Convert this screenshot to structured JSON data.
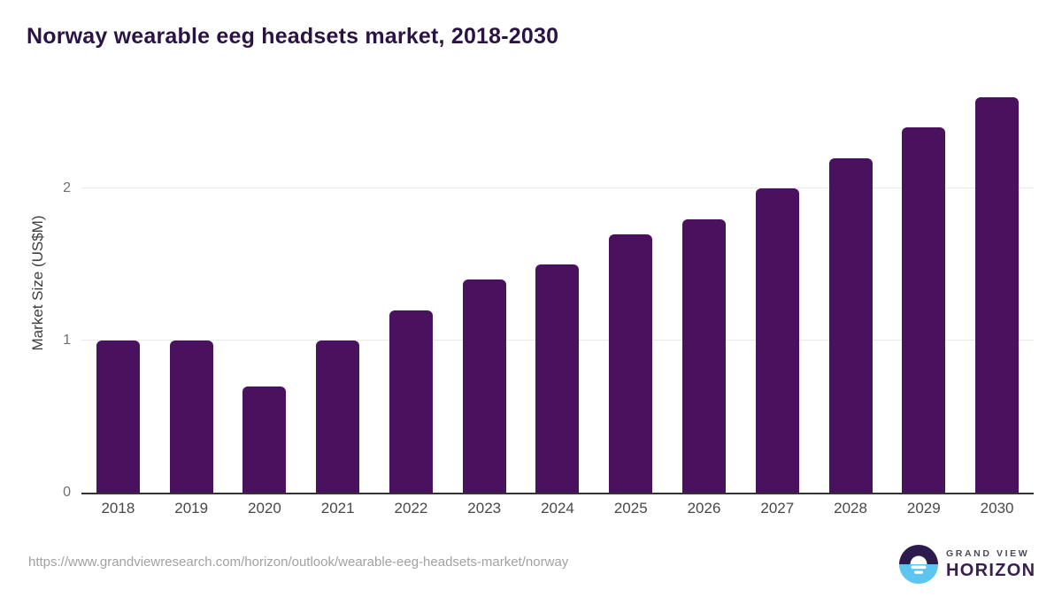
{
  "title": "Norway wearable eeg headsets market, 2018-2030",
  "chart_data": {
    "type": "bar",
    "title": "Norway wearable eeg headsets market, 2018-2030",
    "categories": [
      "2018",
      "2019",
      "2020",
      "2021",
      "2022",
      "2023",
      "2024",
      "2025",
      "2026",
      "2027",
      "2028",
      "2029",
      "2030"
    ],
    "values": [
      1.0,
      1.0,
      0.7,
      1.0,
      1.2,
      1.4,
      1.5,
      1.7,
      1.8,
      2.0,
      2.2,
      2.4,
      2.6
    ],
    "xlabel": "",
    "ylabel": "Market Size (US$M)",
    "yticks": [
      0,
      1,
      2
    ],
    "ylim": [
      0,
      2.6
    ],
    "grid": true,
    "legend": false
  },
  "colors": {
    "bar": "#4a115e",
    "title": "#2b1444",
    "logo_dark": "#2e1a4d",
    "logo_blue": "#5cc6f1"
  },
  "footer": {
    "source_url": "https://www.grandviewresearch.com/horizon/outlook/wearable-eeg-headsets-market/norway",
    "logo": {
      "line1": "GRAND VIEW",
      "line2": "HORIZON"
    }
  }
}
